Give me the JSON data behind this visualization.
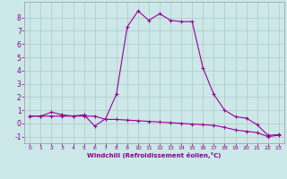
{
  "line1_x": [
    0,
    1,
    2,
    3,
    4,
    5,
    6,
    7,
    8,
    9,
    10,
    11,
    12,
    13,
    14,
    15,
    16,
    17,
    18,
    19,
    20,
    21,
    22,
    23
  ],
  "line1_y": [
    0.55,
    0.55,
    0.85,
    0.65,
    0.55,
    0.65,
    -0.2,
    0.35,
    2.2,
    7.3,
    8.5,
    7.8,
    8.3,
    7.8,
    7.7,
    7.7,
    4.2,
    2.2,
    1.0,
    0.5,
    0.4,
    -0.1,
    -0.9,
    -0.85
  ],
  "line2_x": [
    0,
    1,
    2,
    3,
    4,
    5,
    6,
    7,
    8,
    9,
    10,
    11,
    12,
    13,
    14,
    15,
    16,
    17,
    18,
    19,
    20,
    21,
    22,
    23
  ],
  "line2_y": [
    0.55,
    0.55,
    0.55,
    0.55,
    0.55,
    0.55,
    0.55,
    0.3,
    0.3,
    0.25,
    0.2,
    0.15,
    0.1,
    0.05,
    0.0,
    -0.05,
    -0.1,
    -0.15,
    -0.3,
    -0.5,
    -0.6,
    -0.7,
    -1.0,
    -0.9
  ],
  "line_color": "#990099",
  "marker": "+",
  "markersize": 3,
  "linewidth": 0.8,
  "xlabel": "Windchill (Refroidissement éolien,°C)",
  "ylim": [
    -1.5,
    9.2
  ],
  "xlim": [
    -0.5,
    23.5
  ],
  "yticks": [
    -1,
    0,
    1,
    2,
    3,
    4,
    5,
    6,
    7,
    8
  ],
  "xticks": [
    0,
    1,
    2,
    3,
    4,
    5,
    6,
    7,
    8,
    9,
    10,
    11,
    12,
    13,
    14,
    15,
    16,
    17,
    18,
    19,
    20,
    21,
    22,
    23
  ],
  "background_color": "#cce8e8",
  "grid_color": "#b0c8c8",
  "text_color": "#880088"
}
